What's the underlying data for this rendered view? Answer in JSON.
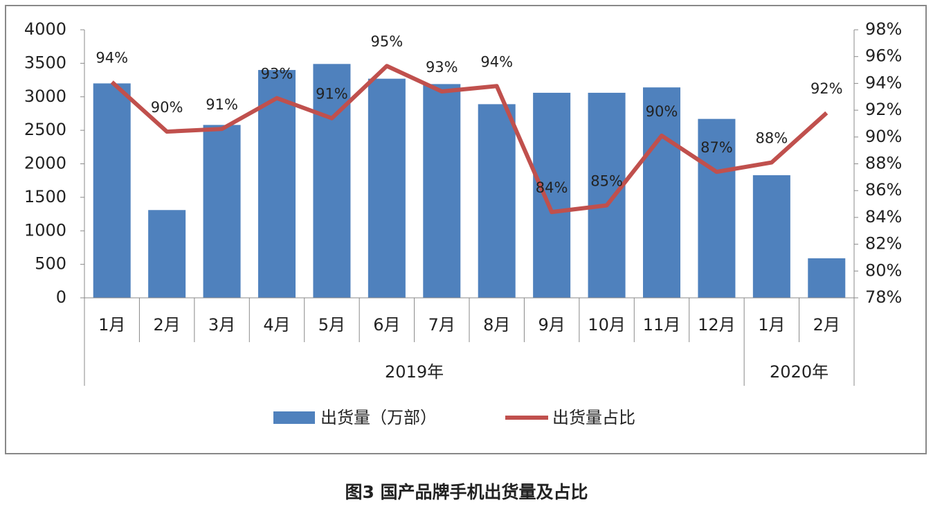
{
  "chart_data": {
    "type": "bar-line",
    "caption": "图3  国产品牌手机出货量及占比",
    "category_groups": [
      {
        "label": "2019年",
        "months": [
          "1月",
          "2月",
          "3月",
          "4月",
          "5月",
          "6月",
          "7月",
          "8月",
          "9月",
          "10月",
          "11月",
          "12月"
        ]
      },
      {
        "label": "2020年",
        "months": [
          "1月",
          "2月"
        ]
      }
    ],
    "series": [
      {
        "name": "出货量（万部）",
        "type": "bar",
        "color": "#4f81bd",
        "values": [
          3200,
          1310,
          2580,
          3400,
          3490,
          3270,
          3190,
          2890,
          3060,
          3060,
          3140,
          2670,
          1830,
          590
        ]
      },
      {
        "name": "出货量占比",
        "type": "line",
        "axis": "y2",
        "color": "#c0504d",
        "values": [
          94.1,
          90.4,
          90.6,
          92.9,
          91.4,
          95.3,
          93.4,
          93.8,
          84.4,
          84.9,
          90.1,
          87.4,
          88.1,
          91.8
        ],
        "value_labels": [
          "94%",
          "90%",
          "91%",
          "93%",
          "91%",
          "95%",
          "93%",
          "94%",
          "84%",
          "85%",
          "90%",
          "87%",
          "88%",
          "92%"
        ]
      }
    ],
    "ylim": [
      0,
      4000
    ],
    "yticks": [
      0,
      500,
      1000,
      1500,
      2000,
      2500,
      3000,
      3500,
      4000
    ],
    "y2lim": [
      78,
      98
    ],
    "y2ticks": [
      {
        "value": 78,
        "label": "78%"
      },
      {
        "value": 80,
        "label": "80%"
      },
      {
        "value": 82,
        "label": "82%"
      },
      {
        "value": 84,
        "label": "84%"
      },
      {
        "value": 86,
        "label": "86%"
      },
      {
        "value": 88,
        "label": "88%"
      },
      {
        "value": 90,
        "label": "90%"
      },
      {
        "value": 92,
        "label": "92%"
      },
      {
        "value": 94,
        "label": "94%"
      },
      {
        "value": 96,
        "label": "96%"
      },
      {
        "value": 98,
        "label": "98%"
      }
    ],
    "legend": "bottom"
  }
}
